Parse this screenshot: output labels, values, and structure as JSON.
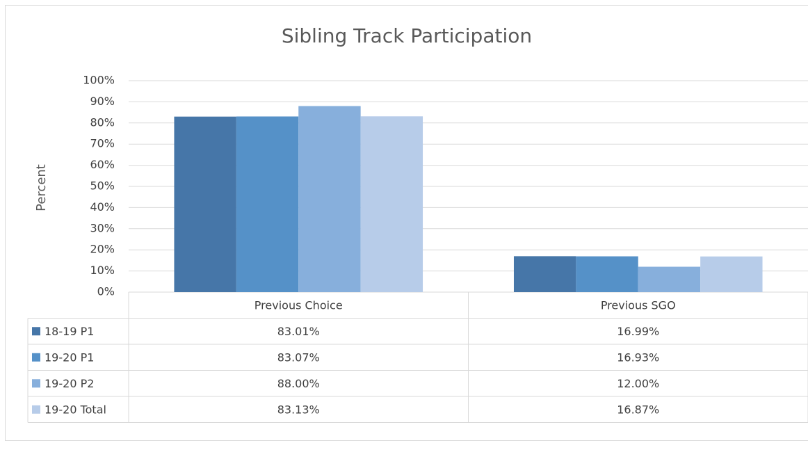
{
  "chart_data": {
    "type": "bar",
    "title": "Sibling Track Participation",
    "y_label": "Percent",
    "categories": [
      "Previous Choice",
      "Previous SGO"
    ],
    "series": [
      {
        "name": "18-19 P1",
        "color": "#4676a8",
        "values": [
          83.01,
          16.99
        ],
        "value_labels": [
          "83.01%",
          "16.99%"
        ]
      },
      {
        "name": "19-20 P1",
        "color": "#5591c8",
        "values": [
          83.07,
          16.93
        ],
        "value_labels": [
          "83.07%",
          "16.93%"
        ]
      },
      {
        "name": "19-20 P2",
        "color": "#87afdc",
        "values": [
          88.0,
          12.0
        ],
        "value_labels": [
          "88.00%",
          "12.00%"
        ]
      },
      {
        "name": "19-20 Total",
        "color": "#b7cce9",
        "values": [
          83.13,
          16.87
        ],
        "value_labels": [
          "83.13%",
          "16.87%"
        ]
      }
    ],
    "ylim": [
      0,
      100
    ],
    "yticks": [
      {
        "value": 0,
        "label": "0%"
      },
      {
        "value": 10,
        "label": "10%"
      },
      {
        "value": 20,
        "label": "20%"
      },
      {
        "value": 30,
        "label": "30%"
      },
      {
        "value": 40,
        "label": "40%"
      },
      {
        "value": 50,
        "label": "50%"
      },
      {
        "value": 60,
        "label": "60%"
      },
      {
        "value": 70,
        "label": "70%"
      },
      {
        "value": 80,
        "label": "80%"
      },
      {
        "value": 90,
        "label": "90%"
      },
      {
        "value": 100,
        "label": "100%"
      }
    ],
    "grid": true
  }
}
